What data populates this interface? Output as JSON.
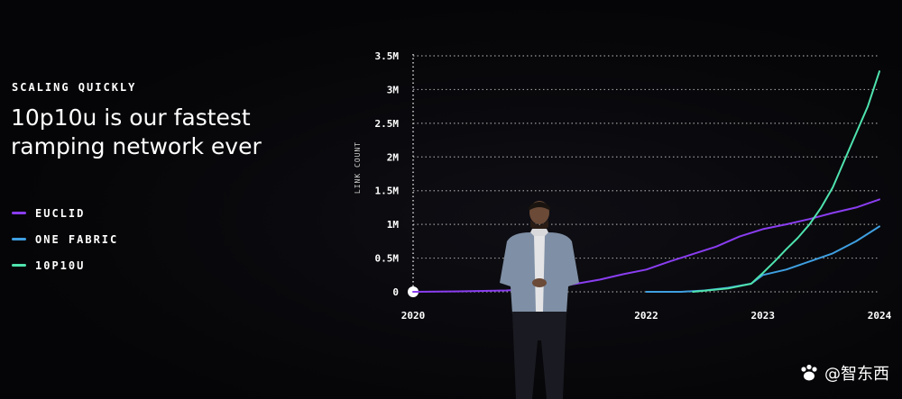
{
  "slide": {
    "eyebrow": "SCALING QUICKLY",
    "headline": "10p10u is our fastest ramping network ever"
  },
  "legend": [
    {
      "label": "EUCLID",
      "color": "#8a3df0"
    },
    {
      "label": "ONE FABRIC",
      "color": "#3f9fe0"
    },
    {
      "label": "10P10U",
      "color": "#4fe3ae"
    }
  ],
  "chart_data": {
    "type": "line",
    "ylabel": "LINK COUNT",
    "xlabel": "",
    "xlim": [
      2020,
      2024
    ],
    "ylim": [
      0,
      3.5
    ],
    "y_ticks": [
      {
        "v": 0,
        "label": "0"
      },
      {
        "v": 0.5,
        "label": "0.5M"
      },
      {
        "v": 1,
        "label": "1M"
      },
      {
        "v": 1.5,
        "label": "1.5M"
      },
      {
        "v": 2,
        "label": "2M"
      },
      {
        "v": 2.5,
        "label": "2.5M"
      },
      {
        "v": 3,
        "label": "3M"
      },
      {
        "v": 3.5,
        "label": "3.5M"
      }
    ],
    "x_ticks": [
      {
        "v": 2020,
        "label": "2020"
      },
      {
        "v": 2022,
        "label": "2022"
      },
      {
        "v": 2023,
        "label": "2023"
      },
      {
        "v": 2024,
        "label": "2024"
      }
    ],
    "grid": true,
    "series": [
      {
        "name": "EUCLID",
        "color": "#8a3df0",
        "x": [
          2020,
          2020.5,
          2020.8,
          2021.0,
          2021.2,
          2021.4,
          2021.6,
          2021.8,
          2022.0,
          2022.2,
          2022.4,
          2022.6,
          2022.8,
          2023.0,
          2023.2,
          2023.4,
          2023.6,
          2023.8,
          2024.0
        ],
        "y": [
          0.0,
          0.01,
          0.02,
          0.04,
          0.07,
          0.12,
          0.18,
          0.26,
          0.33,
          0.45,
          0.56,
          0.67,
          0.82,
          0.93,
          1.0,
          1.08,
          1.17,
          1.25,
          1.37
        ]
      },
      {
        "name": "ONE FABRIC",
        "color": "#3f9fe0",
        "x": [
          2022.0,
          2022.3,
          2022.5,
          2022.7,
          2022.9,
          2023.0,
          2023.2,
          2023.4,
          2023.6,
          2023.8,
          2024.0
        ],
        "y": [
          0.0,
          0.0,
          0.02,
          0.06,
          0.12,
          0.25,
          0.33,
          0.45,
          0.57,
          0.75,
          0.97
        ]
      },
      {
        "name": "10P10U",
        "color": "#4fe3ae",
        "x": [
          2022.4,
          2022.7,
          2022.9,
          2023.0,
          2023.1,
          2023.2,
          2023.3,
          2023.4,
          2023.5,
          2023.6,
          2023.7,
          2023.8,
          2023.9,
          2024.0
        ],
        "y": [
          0.0,
          0.05,
          0.12,
          0.28,
          0.45,
          0.63,
          0.8,
          1.0,
          1.25,
          1.55,
          1.95,
          2.35,
          2.75,
          3.27
        ]
      }
    ]
  },
  "watermark": "@智东西"
}
